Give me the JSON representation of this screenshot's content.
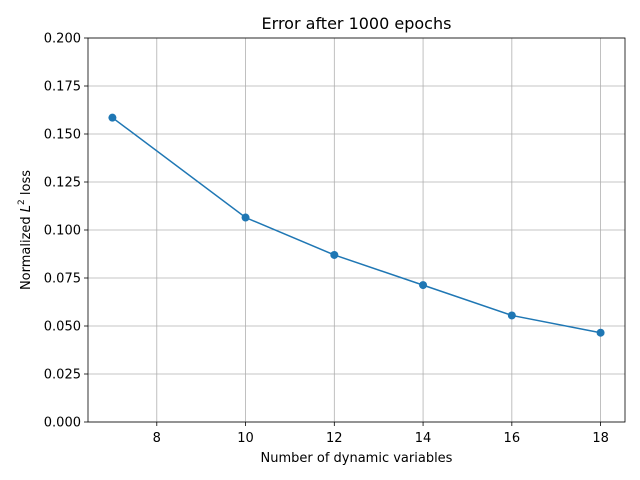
{
  "chart_data": {
    "type": "line",
    "title": "Error after 1000 epochs",
    "xlabel": "Number of dynamic variables",
    "ylabel_prefix": "Normalized ",
    "ylabel_symbol": "L",
    "ylabel_sup": "2",
    "ylabel_suffix": " loss",
    "x": [
      7,
      10,
      12,
      14,
      16,
      18
    ],
    "series": [
      {
        "values": [
          0.1585,
          0.1065,
          0.087,
          0.0713,
          0.0555,
          0.0465
        ],
        "color": "#1f77b4",
        "marker": "circle"
      }
    ],
    "xlim": [
      6.45,
      18.55
    ],
    "ylim": [
      0.0,
      0.2
    ],
    "xticks": [
      8,
      10,
      12,
      14,
      16,
      18
    ],
    "yticks": [
      0.0,
      0.025,
      0.05,
      0.075,
      0.1,
      0.125,
      0.15,
      0.175,
      0.2
    ],
    "xtick_labels": [
      "8",
      "10",
      "12",
      "14",
      "16",
      "18"
    ],
    "ytick_labels": [
      "0.000",
      "0.025",
      "0.050",
      "0.075",
      "0.100",
      "0.125",
      "0.150",
      "0.175",
      "0.200"
    ],
    "grid": true
  }
}
